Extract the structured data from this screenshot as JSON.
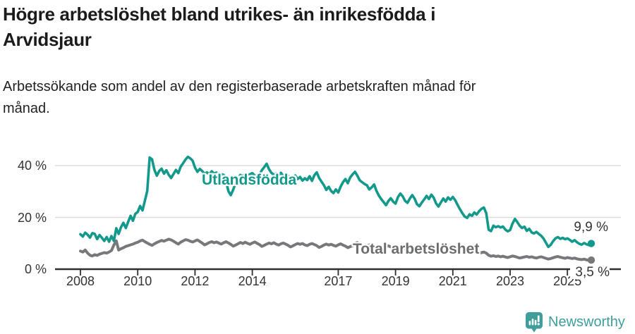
{
  "header": {
    "title_lines": [
      "Högre arbetslöshet bland utrikes- än inrikesfödda i",
      "Arvidsjaur"
    ],
    "subtitle_lines": [
      "Arbetssökande som andel av den registerbaserade arbetskraften månad för",
      "månad."
    ]
  },
  "footer": {
    "brand": "Newsworthy",
    "logo_icon": "newsworthy-bubble-barchart-icon"
  },
  "colors": {
    "foreign_born_line": "#13998c",
    "total_line": "#77787b",
    "total_label": "#6c6d70",
    "grid": "#dedede",
    "axis": "#2e2e2e",
    "tick_text": "#333333",
    "title_text": "#1b1b1b",
    "brand_teal": "#3f9e9b"
  },
  "chart_data": {
    "type": "line",
    "title": "Högre arbetslöshet bland utrikes- än inrikesfödda i Arvidsjaur",
    "subtitle": "Arbetssökande som andel av den registerbaserade arbetskraften månad för månad.",
    "x_unit": "month",
    "x_start": "2008-01",
    "x_end": "2025-11",
    "xticks": [
      2008,
      2010,
      2012,
      2014,
      2017,
      2019,
      2021,
      2023,
      2025
    ],
    "yticks": [
      {
        "value": 0,
        "label": "0 %"
      },
      {
        "value": 20,
        "label": "20 %"
      },
      {
        "value": 40,
        "label": "40 %"
      }
    ],
    "ylim": [
      0,
      46
    ],
    "grid": "horizontal",
    "legend": "inline-labels",
    "series": [
      {
        "name": "Utlandsfödda",
        "color": "#13998c",
        "end_label": "9,9 %",
        "last_value": 9.9,
        "values": [
          13.5,
          12.6,
          14.1,
          13.3,
          12.2,
          13.9,
          13.6,
          11.6,
          13.2,
          12.1,
          10.9,
          12.4,
          10.6,
          12.8,
          10.9,
          15.8,
          13.6,
          16.2,
          17.9,
          15.9,
          18.3,
          20.6,
          18.7,
          21.4,
          22.1,
          24.4,
          22.7,
          26.5,
          30.2,
          43.1,
          42.4,
          38.3,
          36.1,
          37.9,
          38.8,
          36.9,
          38.2,
          36.4,
          35.2,
          36.8,
          38.3,
          37.1,
          39.6,
          40.9,
          42.3,
          43.4,
          42.8,
          41.9,
          39.2,
          37.6,
          38.7,
          37.9,
          36.8,
          37.4,
          36.6,
          37.8,
          36.9,
          37.3,
          36.1,
          36.7,
          36.4,
          33.9,
          30.1,
          28.6,
          30.7,
          33.2,
          35.1,
          36.4,
          35.8,
          36.9,
          36.2,
          36.6,
          37.1,
          36.2,
          35.4,
          36.6,
          38.2,
          39.4,
          40.7,
          38.6,
          37.2,
          36.4,
          37.1,
          36.3,
          37.2,
          35.8,
          34.9,
          36.1,
          34.6,
          35.3,
          36.2,
          34.8,
          35.6,
          34.2,
          35.1,
          34.4,
          35.9,
          34.1,
          36.3,
          37.4,
          35.2,
          33.8,
          32.4,
          30.6,
          31.8,
          30.2,
          29.4,
          30.8,
          29.6,
          31.9,
          33.6,
          34.8,
          33.2,
          35.4,
          36.6,
          37.6,
          36.1,
          34.3,
          33.6,
          32.9,
          32.4,
          30.8,
          31.6,
          32.7,
          30.3,
          28.4,
          27.1,
          25.9,
          24.7,
          26.3,
          27.4,
          26.1,
          25.3,
          27.8,
          29.2,
          28.1,
          26.4,
          25.6,
          27.3,
          28.6,
          27.2,
          25.1,
          24.3,
          25.7,
          26.9,
          28.3,
          27.1,
          28.8,
          27.6,
          25.4,
          24.2,
          25.8,
          27.3,
          26.1,
          27.7,
          26.8,
          27.9,
          26.6,
          24.8,
          23.1,
          21.6,
          20.3,
          19.8,
          21.2,
          20.6,
          21.9,
          21.1,
          22.4,
          23.3,
          23.8,
          21.6,
          15.2,
          14.7,
          16.8,
          16.2,
          16.6,
          16.1,
          16.5,
          15.3,
          14.6,
          15.1,
          17.6,
          19.4,
          18.2,
          16.8,
          15.9,
          16.4,
          14.8,
          15.6,
          14.2,
          13.8,
          14.4,
          13.6,
          12.9,
          11.8,
          10.2,
          8.6,
          9.4,
          10.8,
          11.9,
          12.4,
          11.7,
          12.1,
          11.6,
          11.9,
          11.3,
          10.6,
          11.2,
          10.4,
          9.8,
          9.5,
          10.1,
          9.6,
          9.3,
          9.9
        ]
      },
      {
        "name": "Total arbetslöshet",
        "color": "#77787b",
        "end_label": "3,5 %",
        "last_value": 3.5,
        "values": [
          7.0,
          6.6,
          7.4,
          6.2,
          5.4,
          5.1,
          5.6,
          5.3,
          5.8,
          6.1,
          6.4,
          6.2,
          6.6,
          7.2,
          9.3,
          10.9,
          7.4,
          7.9,
          8.3,
          8.8,
          9.1,
          9.4,
          9.7,
          10.1,
          10.4,
          10.9,
          11.2,
          10.6,
          10.1,
          9.6,
          9.2,
          9.8,
          10.3,
          10.7,
          11.1,
          10.8,
          11.2,
          11.6,
          11.3,
          10.8,
          10.2,
          9.7,
          10.4,
          10.9,
          11.4,
          11.2,
          10.8,
          10.5,
          10.9,
          11.3,
          10.7,
          10.1,
          9.4,
          9.8,
          10.3,
          10.6,
          10.2,
          10.5,
          10.1,
          9.7,
          10.2,
          10.6,
          10.1,
          9.6,
          8.9,
          9.3,
          9.8,
          10.3,
          9.9,
          10.4,
          10.0,
          9.6,
          10.1,
          10.5,
          10.0,
          9.5,
          8.8,
          9.2,
          9.7,
          10.1,
          9.8,
          10.2,
          9.7,
          9.3,
          9.8,
          10.1,
          9.7,
          9.2,
          8.6,
          9.0,
          9.5,
          9.9,
          9.6,
          9.9,
          9.4,
          9.1,
          9.6,
          9.9,
          9.5,
          9.1,
          8.4,
          8.8,
          9.3,
          9.7,
          9.3,
          9.6,
          9.2,
          8.9,
          9.4,
          9.8,
          9.3,
          8.9,
          8.3,
          8.7,
          9.1,
          9.9,
          10.3,
          9.2,
          8.9,
          8.7,
          9.1,
          9.4,
          9.0,
          8.6,
          8.1,
          8.4,
          8.8,
          9.1,
          8.8,
          9.0,
          8.6,
          8.3,
          8.7,
          9.0,
          8.6,
          8.2,
          7.8,
          8.1,
          8.5,
          8.8,
          8.4,
          8.6,
          8.3,
          8.0,
          8.4,
          8.7,
          8.9,
          9.2,
          8.8,
          8.5,
          8.2,
          8.4,
          8.1,
          7.9,
          7.7,
          7.5,
          7.8,
          8.0,
          7.7,
          7.4,
          7.0,
          6.8,
          6.6,
          6.9,
          6.7,
          6.5,
          6.3,
          6.1,
          6.4,
          6.6,
          6.2,
          5.4,
          5.0,
          5.2,
          4.9,
          5.1,
          4.8,
          5.0,
          4.7,
          4.5,
          4.8,
          5.1,
          4.9,
          4.6,
          4.3,
          4.5,
          4.7,
          4.9,
          4.6,
          4.8,
          4.5,
          4.3,
          4.6,
          4.8,
          4.5,
          4.2,
          3.9,
          4.1,
          4.4,
          4.7,
          4.9,
          4.6,
          4.4,
          4.2,
          4.5,
          4.3,
          4.1,
          4.3,
          4.0,
          3.8,
          3.7,
          3.9,
          3.6,
          3.4,
          3.5
        ]
      }
    ]
  }
}
